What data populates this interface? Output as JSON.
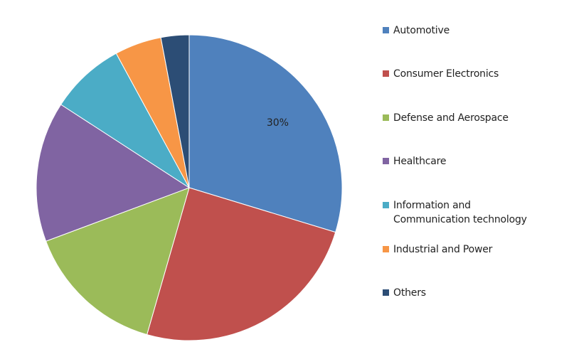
{
  "chart_data": {
    "type": "pie",
    "categories": [
      "Automotive",
      "Consumer Electronics",
      "Defense and Aerospace",
      "Healthcare",
      "Information and Communication technology",
      "Industrial and Power",
      "Others"
    ],
    "legend_labels": [
      "Automotive",
      " Consumer Electronics",
      "Defense and Aerospace",
      "Healthcare",
      "Information and\nCommunication technology",
      "Industrial and Power",
      "Others"
    ],
    "values": [
      30,
      25,
      15,
      15,
      8,
      5,
      3
    ],
    "colors": [
      "#4f81bd",
      "#c0504d",
      "#9bbb59",
      "#8064a2",
      "#4bacc6",
      "#f79646",
      "#2c4d75"
    ],
    "data_labels": [
      "30%",
      "",
      "",
      "",
      "",
      "",
      ""
    ],
    "legend_position": "right",
    "start_angle": "top, clockwise"
  }
}
